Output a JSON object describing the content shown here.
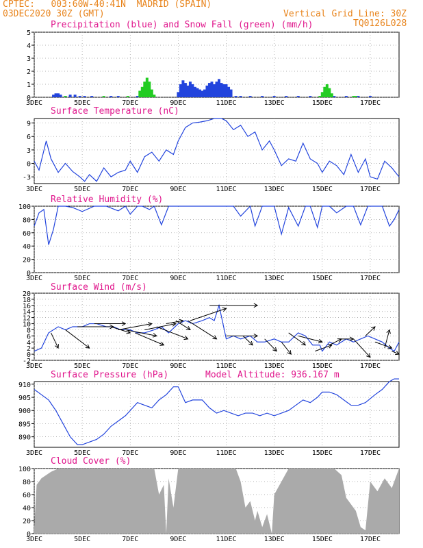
{
  "header": {
    "line1": "CPTEC:   003:60W-40:41N  MADRID (SPAIN)",
    "line2": "03DEC2020 30Z (GMT)",
    "grid_note": "Vertical Grid Line: 30Z",
    "code": "TQ0126L028"
  },
  "colors": {
    "header": "#e8841c",
    "title": "#e0168c",
    "line": "#2244dd",
    "snow": "#22cc22",
    "cloud": "#aaaaaa"
  },
  "chart_data": [
    {
      "id": "precip",
      "type": "bar",
      "title": "Precipitation (blue) and Snow Fall (green) (mm/h)",
      "xlim": [
        3,
        18.2
      ],
      "ylim": [
        0,
        5
      ],
      "yticks": [
        0,
        1,
        2,
        3,
        4,
        5
      ],
      "x_ticks": [
        "3DEC",
        "5DEC",
        "7DEC",
        "9DEC",
        "11DEC",
        "13DEC",
        "15DEC",
        "17DEC"
      ],
      "x_tick_values": [
        3,
        5,
        7,
        9,
        11,
        13,
        15,
        17
      ],
      "series": [
        {
          "name": "Precipitation",
          "color": "blue",
          "x": [
            3.8,
            3.9,
            4.0,
            4.1,
            4.3,
            4.5,
            4.7,
            4.9,
            5.1,
            5.4,
            6.2,
            6.5,
            7.3,
            7.5,
            7.6,
            9.0,
            9.1,
            9.2,
            9.3,
            9.4,
            9.5,
            9.6,
            9.7,
            9.8,
            9.9,
            10.0,
            10.1,
            10.2,
            10.3,
            10.4,
            10.5,
            10.6,
            10.7,
            10.8,
            10.9,
            11.0,
            11.1,
            11.2,
            11.4,
            11.6,
            12.0,
            12.5,
            13.0,
            13.5,
            14.0,
            14.5,
            15.2,
            15.5,
            16.0,
            16.5,
            17.0
          ],
          "values": [
            0.2,
            0.3,
            0.3,
            0.2,
            0.1,
            0.2,
            0.2,
            0.1,
            0.1,
            0.1,
            0.1,
            0.1,
            0.1,
            0.2,
            0.3,
            0.4,
            1.0,
            1.3,
            1.1,
            0.9,
            1.2,
            1.0,
            0.8,
            0.7,
            0.6,
            0.5,
            0.6,
            0.9,
            1.1,
            1.2,
            1.0,
            1.2,
            1.4,
            1.1,
            1.0,
            1.0,
            0.8,
            0.6,
            0.1,
            0.1,
            0.1,
            0.1,
            0.1,
            0.1,
            0.1,
            0.1,
            0.1,
            0.1,
            0.1,
            0.1,
            0.1
          ]
        },
        {
          "name": "Snow Fall",
          "color": "green",
          "x": [
            4.3,
            5.9,
            6.9,
            7.4,
            7.5,
            7.6,
            7.7,
            7.8,
            7.9,
            8.0,
            14.9,
            15.0,
            15.1,
            15.2,
            15.3,
            15.4,
            16.3,
            16.4
          ],
          "values": [
            0.1,
            0.1,
            0.1,
            0.5,
            0.8,
            1.2,
            1.5,
            1.2,
            0.6,
            0.2,
            0.1,
            0.4,
            0.8,
            1.0,
            0.7,
            0.3,
            0.1,
            0.1
          ]
        }
      ]
    },
    {
      "id": "temp",
      "type": "line",
      "title": "Surface Temperature (nC)",
      "xlim": [
        3,
        18.2
      ],
      "ylim": [
        -4.5,
        10
      ],
      "yticks": [
        -3,
        0,
        3,
        6,
        9
      ],
      "x_ticks": [
        "3DEC",
        "5DEC",
        "7DEC",
        "9DEC",
        "11DEC",
        "13DEC",
        "15DEC",
        "17DEC"
      ],
      "x_tick_values": [
        3,
        5,
        7,
        9,
        11,
        13,
        15,
        17
      ],
      "x": [
        3.0,
        3.2,
        3.5,
        3.7,
        4.0,
        4.3,
        4.6,
        4.9,
        5.1,
        5.3,
        5.6,
        5.9,
        6.2,
        6.5,
        6.8,
        7.0,
        7.3,
        7.6,
        7.9,
        8.2,
        8.5,
        8.8,
        9.0,
        9.3,
        9.6,
        9.9,
        10.2,
        10.5,
        10.8,
        11.0,
        11.3,
        11.6,
        11.9,
        12.2,
        12.5,
        12.8,
        13.0,
        13.3,
        13.6,
        13.9,
        14.2,
        14.5,
        14.8,
        15.0,
        15.3,
        15.6,
        15.9,
        16.2,
        16.5,
        16.8,
        17.0,
        17.3,
        17.6,
        17.9,
        18.2
      ],
      "values": [
        0.5,
        -1.5,
        5.0,
        1.0,
        -2.0,
        0.0,
        -1.8,
        -3.0,
        -4.0,
        -2.5,
        -4.0,
        -1.0,
        -3.0,
        -2.0,
        -1.5,
        0.5,
        -2.0,
        1.5,
        2.5,
        0.5,
        3.0,
        2.0,
        5.0,
        8.0,
        9.0,
        9.2,
        9.5,
        10.0,
        10.0,
        9.5,
        7.5,
        8.5,
        6.0,
        7.0,
        3.0,
        5.0,
        3.0,
        -0.5,
        1.0,
        0.5,
        4.5,
        1.0,
        0.0,
        -2.0,
        0.5,
        -0.5,
        -2.5,
        2.0,
        -2.0,
        1.0,
        -3.0,
        -3.5,
        0.5,
        -1.0,
        -3.0
      ]
    },
    {
      "id": "rh",
      "type": "line",
      "title": "Relative Humidity (%)",
      "xlim": [
        3,
        18.2
      ],
      "ylim": [
        0,
        100
      ],
      "yticks": [
        0,
        20,
        40,
        60,
        80,
        100
      ],
      "x_ticks": [
        "3DEC",
        "5DEC",
        "7DEC",
        "9DEC",
        "11DEC",
        "13DEC",
        "15DEC",
        "17DEC"
      ],
      "x_tick_values": [
        3,
        5,
        7,
        9,
        11,
        13,
        15,
        17
      ],
      "x": [
        3.0,
        3.2,
        3.4,
        3.6,
        3.8,
        4.0,
        4.3,
        4.6,
        5.0,
        5.5,
        6.0,
        6.5,
        6.8,
        7.0,
        7.3,
        7.5,
        7.8,
        8.0,
        8.3,
        8.6,
        9.0,
        9.3,
        9.6,
        10.0,
        10.3,
        10.6,
        11.0,
        11.3,
        11.6,
        12.0,
        12.2,
        12.5,
        12.8,
        13.0,
        13.3,
        13.6,
        14.0,
        14.3,
        14.5,
        14.8,
        15.0,
        15.3,
        15.6,
        16.0,
        16.3,
        16.6,
        16.9,
        17.2,
        17.5,
        17.8,
        18.0,
        18.2
      ],
      "values": [
        70,
        90,
        95,
        42,
        65,
        100,
        100,
        98,
        92,
        100,
        100,
        93,
        100,
        88,
        100,
        100,
        95,
        100,
        72,
        100,
        100,
        100,
        100,
        100,
        100,
        100,
        100,
        100,
        85,
        100,
        70,
        100,
        100,
        100,
        58,
        98,
        70,
        100,
        100,
        68,
        100,
        100,
        90,
        100,
        100,
        72,
        100,
        100,
        100,
        70,
        80,
        95
      ]
    },
    {
      "id": "wind",
      "type": "line",
      "title": "Surface Wind (m/s)",
      "xlim": [
        3,
        18.2
      ],
      "ylim": [
        -2,
        20
      ],
      "yticks": [
        -2,
        0,
        2,
        4,
        6,
        8,
        10,
        12,
        14,
        16,
        18,
        20
      ],
      "x_ticks": [
        "3DEC",
        "5DEC",
        "7DEC",
        "9DEC",
        "11DEC",
        "13DEC",
        "15DEC",
        "17DEC"
      ],
      "x_tick_values": [
        3,
        5,
        7,
        9,
        11,
        13,
        15,
        17
      ],
      "x": [
        3.0,
        3.3,
        3.6,
        4.0,
        4.3,
        4.6,
        5.0,
        5.3,
        5.6,
        6.0,
        6.3,
        6.6,
        7.0,
        7.3,
        7.6,
        8.0,
        8.3,
        8.6,
        9.0,
        9.3,
        9.6,
        10.0,
        10.3,
        10.5,
        10.7,
        11.0,
        11.3,
        11.6,
        12.0,
        12.3,
        12.6,
        13.0,
        13.3,
        13.6,
        14.0,
        14.3,
        14.6,
        14.9,
        15.0,
        15.3,
        15.6,
        16.0,
        16.3,
        16.6,
        16.9,
        17.2,
        17.5,
        17.8,
        18.0,
        18.2
      ],
      "values": [
        1,
        2,
        7,
        9,
        8,
        9,
        9,
        10,
        10,
        9,
        9,
        8,
        8,
        7,
        7,
        8,
        9,
        7,
        10,
        11,
        10,
        11,
        12,
        11,
        16,
        5,
        6,
        5,
        6,
        4,
        4,
        5,
        4,
        4,
        7,
        6,
        3,
        3,
        1,
        4,
        3,
        5,
        4,
        5,
        6,
        5,
        4,
        2,
        1,
        4
      ],
      "arrows": [
        {
          "x": 3.7,
          "dx": 0.3,
          "dy": -5
        },
        {
          "x": 4.3,
          "dx": 1.0,
          "dy": -6
        },
        {
          "x": 4.8,
          "dx": 1.5,
          "dy": 0
        },
        {
          "x": 5.5,
          "dx": 1.3,
          "dy": 0
        },
        {
          "x": 6.2,
          "dx": 0.8,
          "dy": -2
        },
        {
          "x": 6.5,
          "dx": 1.4,
          "dy": 2
        },
        {
          "x": 6.8,
          "dx": 1.3,
          "dy": -2
        },
        {
          "x": 7.2,
          "dx": 1.2,
          "dy": -4
        },
        {
          "x": 7.6,
          "dx": 1.3,
          "dy": 2
        },
        {
          "x": 8.1,
          "dx": 1.3,
          "dy": -4
        },
        {
          "x": 8.5,
          "dx": 0.7,
          "dy": 1
        },
        {
          "x": 8.9,
          "dx": 0.6,
          "dy": -3
        },
        {
          "x": 9.4,
          "dx": 1.2,
          "dy": -6
        },
        {
          "x": 9.5,
          "dx": 1.5,
          "dy": 4
        },
        {
          "x": 10.3,
          "dx": 2.0,
          "dy": 0
        },
        {
          "x": 11.0,
          "dx": 1.3,
          "dy": 0
        },
        {
          "x": 11.7,
          "dx": 0.4,
          "dy": -3
        },
        {
          "x": 12.6,
          "dx": 0.5,
          "dy": -4
        },
        {
          "x": 13.3,
          "dx": 0.4,
          "dy": -4
        },
        {
          "x": 13.6,
          "dx": 0.7,
          "dy": -4
        },
        {
          "x": 14.0,
          "dx": 1.0,
          "dy": -2
        },
        {
          "x": 14.7,
          "dx": 0.7,
          "dy": 2
        },
        {
          "x": 15.3,
          "dx": 0.5,
          "dy": 2
        },
        {
          "x": 15.7,
          "dx": 0.6,
          "dy": 0
        },
        {
          "x": 16.3,
          "dx": 0.7,
          "dy": -6
        },
        {
          "x": 16.8,
          "dx": 0.4,
          "dy": 3
        },
        {
          "x": 17.2,
          "dx": 0.7,
          "dy": -2
        },
        {
          "x": 17.6,
          "dx": 0.2,
          "dy": 6
        },
        {
          "x": 17.9,
          "dx": 0.3,
          "dy": -1
        }
      ]
    },
    {
      "id": "pres",
      "type": "line",
      "title": "Surface Pressure (hPa)",
      "subtitle": "Model Altitude: 936.167 m",
      "xlim": [
        3,
        18.2
      ],
      "ylim": [
        886,
        911
      ],
      "yticks": [
        890,
        895,
        900,
        905,
        910
      ],
      "x_ticks": [
        "3DEC",
        "5DEC",
        "7DEC",
        "9DEC",
        "11DEC",
        "13DEC",
        "15DEC",
        "17DEC"
      ],
      "x_tick_values": [
        3,
        5,
        7,
        9,
        11,
        13,
        15,
        17
      ],
      "x": [
        3.0,
        3.3,
        3.6,
        3.9,
        4.2,
        4.5,
        4.8,
        5.0,
        5.3,
        5.6,
        5.9,
        6.2,
        6.5,
        6.8,
        7.0,
        7.3,
        7.6,
        7.9,
        8.2,
        8.5,
        8.8,
        9.0,
        9.3,
        9.6,
        10.0,
        10.3,
        10.6,
        10.9,
        11.2,
        11.5,
        11.8,
        12.1,
        12.4,
        12.7,
        13.0,
        13.3,
        13.6,
        13.9,
        14.2,
        14.5,
        14.8,
        15.0,
        15.3,
        15.6,
        15.9,
        16.2,
        16.5,
        16.8,
        17.2,
        17.5,
        17.8,
        18.0,
        18.2
      ],
      "values": [
        908,
        906,
        904,
        900,
        895,
        890,
        887,
        887,
        888,
        889,
        891,
        894,
        896,
        898,
        900,
        903,
        902,
        901,
        904,
        906,
        909,
        909,
        903,
        904,
        904,
        901,
        899,
        900,
        899,
        898,
        899,
        899,
        898,
        899,
        898,
        899,
        900,
        902,
        904,
        903,
        905,
        907,
        907,
        906,
        904,
        902,
        902,
        903,
        906,
        908,
        911,
        912,
        912
      ]
    },
    {
      "id": "cloud",
      "type": "area",
      "title": "Cloud Cover (%)",
      "xlim": [
        3,
        18.2
      ],
      "ylim": [
        0,
        100
      ],
      "yticks": [
        0,
        20,
        40,
        60,
        80,
        100
      ],
      "x_ticks": [
        "3DEC",
        "5DEC",
        "7DEC",
        "9DEC",
        "11DEC",
        "13DEC",
        "15DEC",
        "17DEC"
      ],
      "x_tick_values": [
        3,
        5,
        7,
        9,
        11,
        13,
        15,
        17
      ],
      "x": [
        3.0,
        3.1,
        3.3,
        3.5,
        3.7,
        4.0,
        4.5,
        5.0,
        5.5,
        6.0,
        6.5,
        7.0,
        7.5,
        8.0,
        8.2,
        8.4,
        8.5,
        8.6,
        8.8,
        9.0,
        9.5,
        10.0,
        10.5,
        11.0,
        11.4,
        11.6,
        11.8,
        12.0,
        12.2,
        12.3,
        12.5,
        12.7,
        12.9,
        13.0,
        13.3,
        13.6,
        14.0,
        14.5,
        15.0,
        15.5,
        15.8,
        16.0,
        16.2,
        16.4,
        16.6,
        16.8,
        17.0,
        17.3,
        17.6,
        17.9,
        18.2
      ],
      "values": [
        10,
        75,
        85,
        90,
        95,
        100,
        100,
        100,
        100,
        100,
        100,
        100,
        100,
        100,
        60,
        75,
        0,
        85,
        40,
        100,
        100,
        100,
        100,
        100,
        100,
        80,
        40,
        50,
        20,
        35,
        10,
        30,
        0,
        60,
        80,
        100,
        100,
        100,
        100,
        100,
        90,
        55,
        45,
        35,
        10,
        5,
        80,
        65,
        85,
        70,
        100
      ]
    }
  ]
}
